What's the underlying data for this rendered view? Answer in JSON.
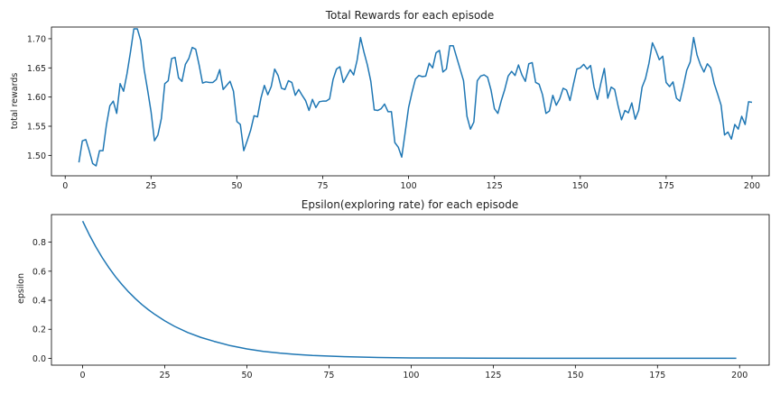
{
  "colors": {
    "line": "#1f77b4",
    "axis": "#000000",
    "background": "#ffffff"
  },
  "chart_data": [
    {
      "type": "line",
      "title": "Total Rewards for each episode",
      "xlabel": "",
      "ylabel": "total rewards",
      "xlim": [
        -4,
        205
      ],
      "ylim": [
        1.465,
        1.72
      ],
      "xticks": [
        0,
        25,
        50,
        75,
        100,
        125,
        150,
        175,
        200
      ],
      "yticks": [
        1.5,
        1.55,
        1.6,
        1.65,
        1.7
      ],
      "ytick_labels": [
        "1.50",
        "1.55",
        "1.60",
        "1.65",
        "1.70"
      ],
      "grid": false,
      "series": [
        {
          "x_start": 4,
          "values": [
            1.488,
            1.525,
            1.527,
            1.508,
            1.486,
            1.482,
            1.508,
            1.508,
            1.552,
            1.585,
            1.593,
            1.572,
            1.623,
            1.61,
            1.64,
            1.677,
            1.717,
            1.717,
            1.697,
            1.647,
            1.612,
            1.575,
            1.525,
            1.535,
            1.563,
            1.623,
            1.628,
            1.666,
            1.668,
            1.633,
            1.627,
            1.656,
            1.666,
            1.685,
            1.682,
            1.655,
            1.624,
            1.626,
            1.625,
            1.625,
            1.63,
            1.647,
            1.613,
            1.62,
            1.627,
            1.61,
            1.558,
            1.553,
            1.508,
            1.525,
            1.543,
            1.568,
            1.566,
            1.598,
            1.62,
            1.604,
            1.618,
            1.648,
            1.637,
            1.615,
            1.613,
            1.628,
            1.625,
            1.603,
            1.613,
            1.603,
            1.594,
            1.577,
            1.596,
            1.582,
            1.592,
            1.593,
            1.593,
            1.597,
            1.63,
            1.648,
            1.652,
            1.625,
            1.636,
            1.647,
            1.638,
            1.663,
            1.702,
            1.677,
            1.655,
            1.627,
            1.578,
            1.577,
            1.58,
            1.588,
            1.575,
            1.575,
            1.522,
            1.514,
            1.497,
            1.539,
            1.582,
            1.608,
            1.631,
            1.637,
            1.635,
            1.636,
            1.658,
            1.65,
            1.676,
            1.68,
            1.643,
            1.648,
            1.688,
            1.688,
            1.668,
            1.648,
            1.628,
            1.567,
            1.545,
            1.557,
            1.628,
            1.636,
            1.638,
            1.634,
            1.612,
            1.58,
            1.572,
            1.594,
            1.613,
            1.636,
            1.644,
            1.637,
            1.655,
            1.638,
            1.627,
            1.657,
            1.659,
            1.625,
            1.622,
            1.604,
            1.572,
            1.576,
            1.603,
            1.586,
            1.597,
            1.615,
            1.612,
            1.594,
            1.622,
            1.648,
            1.65,
            1.656,
            1.648,
            1.654,
            1.617,
            1.596,
            1.624,
            1.649,
            1.598,
            1.617,
            1.613,
            1.585,
            1.561,
            1.577,
            1.573,
            1.59,
            1.562,
            1.577,
            1.617,
            1.632,
            1.658,
            1.693,
            1.68,
            1.664,
            1.67,
            1.625,
            1.618,
            1.626,
            1.598,
            1.593,
            1.618,
            1.646,
            1.66,
            1.702,
            1.672,
            1.655,
            1.643,
            1.657,
            1.65,
            1.623,
            1.605,
            1.586,
            1.535,
            1.54,
            1.528,
            1.553,
            1.545,
            1.567,
            1.553,
            1.592,
            1.591
          ]
        }
      ]
    },
    {
      "type": "line",
      "title": "Epsilon(exploring rate) for each episode",
      "xlabel": "",
      "ylabel": "epsilon",
      "xlim": [
        -9.5,
        209
      ],
      "ylim": [
        -0.047,
        0.99
      ],
      "xticks": [
        0,
        25,
        50,
        75,
        100,
        125,
        150,
        175,
        200
      ],
      "yticks": [
        0.0,
        0.2,
        0.4,
        0.6,
        0.8
      ],
      "ytick_labels": [
        "0.0",
        "0.2",
        "0.4",
        "0.6",
        "0.8"
      ],
      "grid": false,
      "series": [
        {
          "x": [
            0,
            2,
            4,
            6,
            8,
            10,
            12,
            14,
            16,
            18,
            20,
            22,
            25,
            28,
            32,
            36,
            40,
            45,
            50,
            55,
            60,
            65,
            70,
            80,
            90,
            100,
            120,
            140,
            160,
            180,
            199
          ],
          "values": [
            0.945,
            0.852,
            0.768,
            0.692,
            0.624,
            0.562,
            0.507,
            0.457,
            0.412,
            0.371,
            0.335,
            0.302,
            0.258,
            0.22,
            0.178,
            0.144,
            0.117,
            0.087,
            0.065,
            0.048,
            0.036,
            0.027,
            0.02,
            0.011,
            0.006,
            0.003,
            0.001,
            0.0,
            0.0,
            0.0,
            0.0
          ]
        }
      ]
    }
  ]
}
